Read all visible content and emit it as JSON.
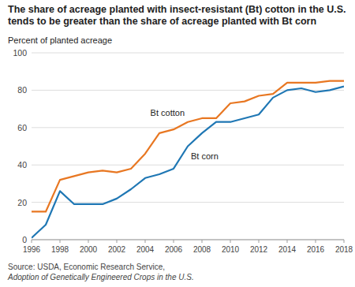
{
  "chart_data": {
    "type": "line",
    "title": "The share of acreage planted with insect-resistant (Bt) cotton in the U.S. tends to be greater than the share of acreage planted with Bt corn",
    "y_label": "Percent of planted acreage",
    "annotations": [
      "Source: USDA, Economic Research Service,",
      "Adoption of Genetically Engineered Crops in the U.S."
    ],
    "x": [
      1996,
      1997,
      1998,
      1999,
      2000,
      2001,
      2002,
      2003,
      2004,
      2005,
      2006,
      2007,
      2008,
      2009,
      2010,
      2011,
      2012,
      2013,
      2014,
      2015,
      2016,
      2017,
      2018
    ],
    "series": [
      {
        "name": "Bt cotton",
        "color": "#E87722",
        "values": [
          15,
          15,
          32,
          34,
          36,
          37,
          36,
          38,
          46,
          57,
          59,
          63,
          65,
          65,
          73,
          74,
          77,
          78,
          84,
          84,
          84,
          85,
          85
        ]
      },
      {
        "name": "Bt corn",
        "color": "#1F77B4",
        "values": [
          1,
          8,
          26,
          19,
          19,
          19,
          22,
          27,
          33,
          35,
          38,
          50,
          57,
          63,
          63,
          65,
          67,
          76,
          80,
          81,
          79,
          80,
          82
        ]
      }
    ],
    "xlim": [
      1996,
      2018
    ],
    "xticks": [
      1996,
      1998,
      2000,
      2002,
      2004,
      2006,
      2008,
      2010,
      2012,
      2014,
      2016,
      2018
    ],
    "ylim": [
      0,
      100
    ],
    "yticks": [
      0,
      20,
      40,
      60,
      80,
      100
    ],
    "grid": true
  }
}
